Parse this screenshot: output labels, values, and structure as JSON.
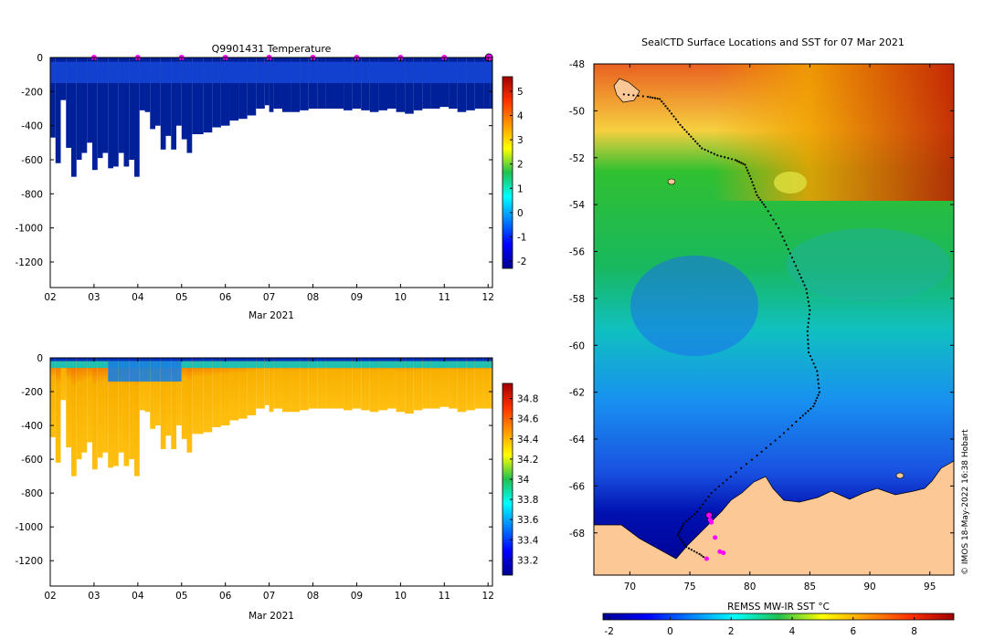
{
  "chart_data": [
    {
      "type": "heatmap",
      "title": "Q9901431  Temperature",
      "xlabel": "Mar 2021",
      "ylabel": "",
      "xlim": [
        2,
        12.1
      ],
      "ylim": [
        -1350,
        0
      ],
      "xticks": [
        2,
        3,
        4,
        5,
        6,
        7,
        8,
        9,
        10,
        11,
        12
      ],
      "xtick_labels": [
        "02",
        "03",
        "04",
        "05",
        "06",
        "07",
        "08",
        "09",
        "10",
        "11",
        "12"
      ],
      "yticks": [
        0,
        -200,
        -400,
        -600,
        -800,
        -1000,
        -1200
      ],
      "ytick_labels": [
        "0",
        "-200",
        "-400",
        "-600",
        "-800",
        "-1000",
        "-1200"
      ],
      "colorbar": {
        "min": -2.3,
        "max": 5.6,
        "ticks": [
          -2,
          -1,
          0,
          1,
          2,
          3,
          4,
          5
        ],
        "tick_labels": [
          "-2",
          "-1",
          "0",
          "1",
          "2",
          "3",
          "4",
          "5"
        ]
      },
      "profile_times": [
        2.0,
        2.12,
        2.24,
        2.36,
        2.48,
        2.6,
        2.72,
        2.84,
        2.96,
        3.08,
        3.2,
        3.32,
        3.44,
        3.56,
        3.68,
        3.8,
        3.92,
        4.04,
        4.16,
        4.28,
        4.4,
        4.52,
        4.64,
        4.76,
        4.88,
        5.0,
        5.12,
        5.24,
        5.36,
        5.5,
        5.7,
        5.9,
        6.1,
        6.3,
        6.5,
        6.7,
        6.9,
        7.0,
        7.1,
        7.3,
        7.5,
        7.7,
        7.9,
        8.1,
        8.3,
        8.5,
        8.7,
        8.9,
        9.1,
        9.3,
        9.5,
        9.7,
        9.9,
        10.1,
        10.3,
        10.5,
        10.7,
        10.9,
        11.1,
        11.3,
        11.5,
        11.7,
        11.9,
        12.05
      ],
      "profile_max_depth": [
        470,
        620,
        250,
        530,
        700,
        600,
        560,
        500,
        660,
        590,
        560,
        650,
        640,
        560,
        640,
        600,
        700,
        310,
        320,
        420,
        400,
        540,
        460,
        540,
        400,
        480,
        560,
        450,
        450,
        440,
        410,
        400,
        370,
        360,
        340,
        300,
        280,
        320,
        300,
        320,
        320,
        310,
        300,
        300,
        300,
        300,
        310,
        300,
        310,
        320,
        310,
        300,
        320,
        330,
        310,
        300,
        300,
        290,
        300,
        320,
        310,
        300,
        300,
        300
      ],
      "surface_markers": [
        3,
        4,
        5,
        6,
        7,
        8,
        9,
        10,
        11
      ],
      "marker_color": "#ff00ff"
    },
    {
      "type": "heatmap",
      "title": "",
      "xlabel": "Mar 2021",
      "ylabel": "",
      "xlim": [
        2,
        12.1
      ],
      "ylim": [
        -1350,
        0
      ],
      "xticks": [
        2,
        3,
        4,
        5,
        6,
        7,
        8,
        9,
        10,
        11,
        12
      ],
      "xtick_labels": [
        "02",
        "03",
        "04",
        "05",
        "06",
        "07",
        "08",
        "09",
        "10",
        "11",
        "12"
      ],
      "yticks": [
        0,
        -200,
        -400,
        -600,
        -800,
        -1000,
        -1200
      ],
      "ytick_labels": [
        "0",
        "-200",
        "-400",
        "-600",
        "-800",
        "-1000",
        "-1200"
      ],
      "colorbar": {
        "min": 33.05,
        "max": 34.95,
        "ticks": [
          33.2,
          33.4,
          33.6,
          33.8,
          34,
          34.2,
          34.4,
          34.6,
          34.8
        ],
        "tick_labels": [
          "33.2",
          "33.4",
          "33.6",
          "33.8",
          "34",
          "34.2",
          "34.4",
          "34.6",
          "34.8"
        ]
      }
    },
    {
      "type": "heatmap",
      "title": "SealCTD Surface Locations and SST for 07 Mar 2021",
      "xlabel": "",
      "ylabel": "",
      "xlim": [
        67,
        97
      ],
      "ylim": [
        -69.8,
        -48
      ],
      "xticks": [
        70,
        75,
        80,
        85,
        90,
        95
      ],
      "xtick_labels": [
        "70",
        "75",
        "80",
        "85",
        "90",
        "95"
      ],
      "yticks": [
        -48,
        -50,
        -52,
        -54,
        -56,
        -58,
        -60,
        -62,
        -64,
        -66,
        -68
      ],
      "ytick_labels": [
        "-48",
        "-50",
        "-52",
        "-54",
        "-56",
        "-58",
        "-60",
        "-62",
        "-64",
        "-66",
        "-68"
      ],
      "colorbar": {
        "label": "REMSS MW-IR SST °C",
        "min": -2.2,
        "max": 9.3,
        "ticks": [
          -2,
          0,
          2,
          4,
          6,
          8
        ],
        "tick_labels": [
          "-2",
          "0",
          "2",
          "4",
          "6",
          "8"
        ]
      },
      "track": {
        "lon": [
          69.5,
          71.5,
          72.5,
          73.3,
          74.2,
          75.1,
          76.0,
          77.3,
          78.8,
          79.6,
          80.1,
          80.6,
          81.3,
          82.4,
          83.2,
          84.0,
          84.7,
          85.0,
          84.8,
          84.9,
          85.6,
          85.8,
          85.3,
          84.2,
          82.5,
          80.6,
          78.4,
          76.8,
          75.6,
          74.5,
          74.0,
          74.7,
          75.8,
          76.6
        ],
        "lat": [
          -49.3,
          -49.4,
          -49.5,
          -50.0,
          -50.6,
          -51.1,
          -51.6,
          -51.9,
          -52.1,
          -52.3,
          -52.9,
          -53.6,
          -54.1,
          -55.0,
          -55.9,
          -56.8,
          -57.6,
          -58.5,
          -59.4,
          -60.3,
          -61.1,
          -62.0,
          -62.6,
          -63.1,
          -63.9,
          -64.7,
          -65.6,
          -66.3,
          -67.1,
          -67.6,
          -68.1,
          -68.6,
          -68.9,
          -69.2
        ],
        "color": "#000000"
      },
      "surface_positions": {
        "lon": [
          76.6,
          76.7,
          76.8,
          77.1,
          77.5,
          77.8,
          76.4
        ],
        "lat": [
          -67.25,
          -67.45,
          -67.55,
          -68.2,
          -68.8,
          -68.85,
          -69.1
        ]
      },
      "marker_color": "#ff00ff",
      "land_color": "#fcc896"
    }
  ],
  "credit": "© IMOS 18-May-2022 16:38 Hobart"
}
